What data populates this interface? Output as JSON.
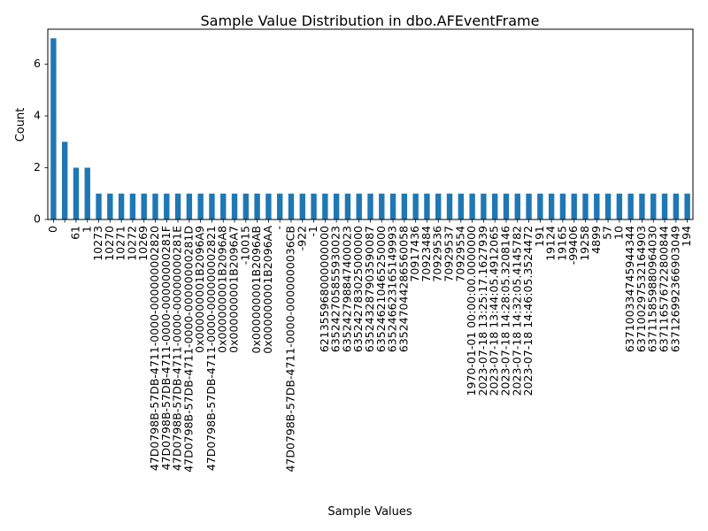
{
  "chart_data": {
    "type": "bar",
    "title": "Sample Value Distribution in dbo.AFEventFrame",
    "xlabel": "Sample Values",
    "ylabel": "Count",
    "ylim": [
      0,
      7.35
    ],
    "yticks": [
      0,
      2,
      4,
      6
    ],
    "bar_color": "#1f77b4",
    "grid": false,
    "categories": [
      "0",
      "",
      "61",
      "1",
      "10273",
      "10270",
      "10271",
      "10272",
      "10269",
      "47D0798B-57DB-4711-0000-000000002820",
      "47D0798B-57DB-4711-0000-00000000281F",
      "47D0798B-57DB-4711-0000-00000000281E",
      "47D0798B-57DB-4711-0000-00000000281D",
      "0x000000001B2096A9",
      "47D0798B-57DB-4711-0000-000000002821",
      "0x000000001B2096A8",
      "0x000000001B2096A7",
      "-10015",
      "0x000000001B2096AB",
      "0x000000001B2096AA",
      "-",
      "47D0798B-57DB-4711-0000-0000000036CB",
      "-922",
      "-1",
      "621355968000000000",
      "635242705855930023",
      "635242798847400023",
      "635242783025000000",
      "635243287903590087",
      "635246210465250000",
      "635246623165149993",
      "635247044286560058",
      "70917436",
      "70923484",
      "70929536",
      "70929537",
      "70929554",
      "1970-01-01 00:00:00.0000000",
      "2023-07-18 13:25:17.1627939",
      "2023-07-18 13:44:05.4912065",
      "2023-07-18 14:28:05.3208146",
      "2023-07-18 14:32:05.4145782",
      "2023-07-18 14:46:05.3524472",
      "191",
      "19124",
      "19165",
      "-99406",
      "19258",
      "4899",
      "57",
      "10",
      "637100334745944344",
      "637100297532164903",
      "637115859880964030",
      "637116576722800844",
      "637126992366903049",
      "194"
    ],
    "values": [
      7,
      3,
      2,
      2,
      1,
      1,
      1,
      1,
      1,
      1,
      1,
      1,
      1,
      1,
      1,
      1,
      1,
      1,
      1,
      1,
      1,
      1,
      1,
      1,
      1,
      1,
      1,
      1,
      1,
      1,
      1,
      1,
      1,
      1,
      1,
      1,
      1,
      1,
      1,
      1,
      1,
      1,
      1,
      1,
      1,
      1,
      1,
      1,
      1,
      1,
      1,
      1,
      1,
      1,
      1,
      1,
      1
    ]
  }
}
